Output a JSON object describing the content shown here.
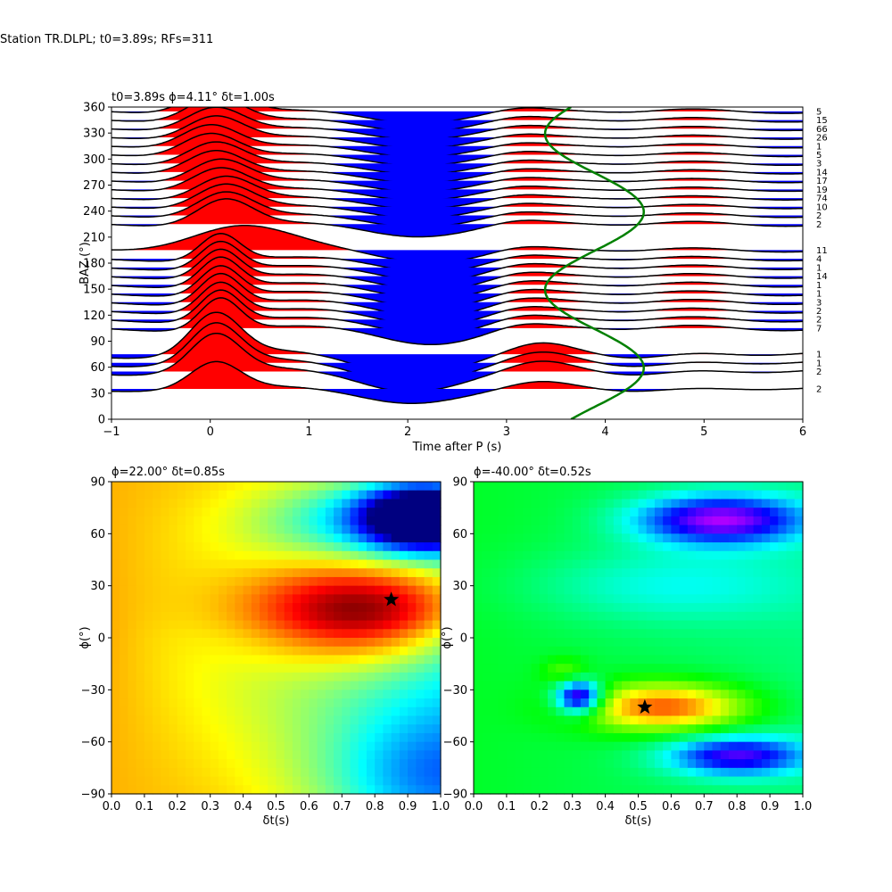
{
  "figure": {
    "suptitle": "Station TR.DLPL; t0=3.89s; RFs=311"
  },
  "chart_data": [
    {
      "type": "line",
      "subtype": "receiver-function wiggle traces sorted by back-azimuth",
      "title": "t0=3.89s ϕ=4.11° δt=1.00s",
      "xlabel": "Time after P (s)",
      "ylabel": "BAZ (°)",
      "xlim": [
        -1,
        6
      ],
      "ylim": [
        0,
        360
      ],
      "xticks": [
        -1,
        0,
        1,
        2,
        3,
        4,
        5,
        6
      ],
      "yticks": [
        0,
        30,
        60,
        90,
        120,
        150,
        180,
        210,
        240,
        270,
        300,
        330,
        360
      ],
      "fill_colors": {
        "positive": "#ff0000",
        "negative": "#0000ff"
      },
      "trace_color": "#000000",
      "curve_color": "#008000",
      "traces": [
        {
          "baz": 35,
          "count": "2",
          "amp": 30,
          "p": [
            0.05,
            0.25,
            0.0,
            0.1
          ]
        },
        {
          "baz": 55,
          "count": "2",
          "amp": 42,
          "p": [
            0.05,
            0.25,
            0.0,
            0.1
          ]
        },
        {
          "baz": 65,
          "count": "1",
          "amp": 44,
          "p": [
            0.05,
            0.25,
            0.0,
            0.1
          ]
        },
        {
          "baz": 75,
          "count": "1",
          "amp": 46,
          "p": [
            0.05,
            0.25,
            0.0,
            0.1
          ]
        },
        {
          "baz": 105,
          "count": "7",
          "amp": 36,
          "p": [
            0.1,
            0.2,
            0.8,
            -0.8
          ]
        },
        {
          "baz": 115,
          "count": "2",
          "amp": 35,
          "p": [
            0.1,
            0.2,
            0.8,
            -0.8
          ]
        },
        {
          "baz": 125,
          "count": "2",
          "amp": 34,
          "p": [
            0.1,
            0.2,
            0.8,
            -0.8
          ]
        },
        {
          "baz": 135,
          "count": "3",
          "amp": 34,
          "p": [
            0.1,
            0.2,
            0.8,
            -0.8
          ]
        },
        {
          "baz": 145,
          "count": "1",
          "amp": 33,
          "p": [
            0.1,
            0.2,
            0.8,
            -0.8
          ]
        },
        {
          "baz": 155,
          "count": "1",
          "amp": 33,
          "p": [
            0.1,
            0.2,
            0.8,
            -0.8
          ]
        },
        {
          "baz": 165,
          "count": "14",
          "amp": 32,
          "p": [
            0.1,
            0.2,
            0.8,
            -0.8
          ]
        },
        {
          "baz": 175,
          "count": "1",
          "amp": 31,
          "p": [
            0.1,
            0.2,
            0.8,
            -0.8
          ]
        },
        {
          "baz": 185,
          "count": "4",
          "amp": 30,
          "p": [
            0.1,
            0.2,
            0.8,
            -0.8
          ]
        },
        {
          "baz": 195,
          "count": "11",
          "amp": 28,
          "p": [
            0.3,
            0.5,
            0.8,
            -0.8
          ]
        },
        {
          "baz": 225,
          "count": "2",
          "amp": 30,
          "p": [
            0.15,
            0.28,
            0.0,
            -0.9
          ]
        },
        {
          "baz": 235,
          "count": "2",
          "amp": 28,
          "p": [
            0.15,
            0.28,
            0.0,
            -0.9
          ]
        },
        {
          "baz": 245,
          "count": "10",
          "amp": 27,
          "p": [
            0.15,
            0.28,
            0.0,
            -0.9
          ]
        },
        {
          "baz": 255,
          "count": "74",
          "amp": 26,
          "p": [
            0.15,
            0.28,
            0.0,
            -0.9
          ]
        },
        {
          "baz": 265,
          "count": "19",
          "amp": 26,
          "p": [
            0.1,
            0.28,
            0.0,
            -0.9
          ]
        },
        {
          "baz": 275,
          "count": "17",
          "amp": 26,
          "p": [
            0.1,
            0.28,
            0.0,
            -0.9
          ]
        },
        {
          "baz": 285,
          "count": "14",
          "amp": 26,
          "p": [
            0.05,
            0.28,
            0.0,
            -0.9
          ]
        },
        {
          "baz": 295,
          "count": "3",
          "amp": 26,
          "p": [
            0.05,
            0.28,
            0.0,
            -0.9
          ]
        },
        {
          "baz": 305,
          "count": "5",
          "amp": 26,
          "p": [
            0.0,
            0.28,
            0.0,
            -0.9
          ]
        },
        {
          "baz": 315,
          "count": "1",
          "amp": 26,
          "p": [
            0.0,
            0.28,
            0.0,
            -0.9
          ]
        },
        {
          "baz": 325,
          "count": "26",
          "amp": 26,
          "p": [
            0.05,
            0.28,
            0.0,
            -0.9
          ]
        },
        {
          "baz": 335,
          "count": "66",
          "amp": 26,
          "p": [
            0.05,
            0.28,
            0.0,
            -0.9
          ]
        },
        {
          "baz": 345,
          "count": "15",
          "amp": 28,
          "p": [
            0.05,
            0.28,
            0.0,
            -0.9
          ]
        },
        {
          "baz": 355,
          "count": "5",
          "amp": 28,
          "p": [
            0.05,
            0.28,
            0.0,
            -0.9
          ]
        }
      ],
      "curve": {
        "name": "",
        "center": 3.89,
        "amplitude": 0.5,
        "baz_period": 180,
        "baz_phase": 4.11
      }
    },
    {
      "type": "heatmap",
      "title": "ϕ=22.00° δt=0.85s",
      "xlabel": "δt(s)",
      "ylabel": "ϕ(°)",
      "xlim": [
        0.0,
        1.0
      ],
      "ylim": [
        -90,
        90
      ],
      "xticks": [
        0.0,
        0.1,
        0.2,
        0.3,
        0.4,
        0.5,
        0.6,
        0.7,
        0.8,
        0.9,
        1.0
      ],
      "yticks": [
        -90,
        -60,
        -30,
        0,
        30,
        60,
        90
      ],
      "colormap": "jet",
      "best": {
        "dt": 0.85,
        "phi": 22.0
      },
      "bumps": [
        {
          "dt": 0.78,
          "phi": 15,
          "sx": 0.25,
          "sy": 20,
          "a": 0.55
        },
        {
          "dt": 0.95,
          "phi": 70,
          "sx": 0.12,
          "sy": 12,
          "a": -0.75
        },
        {
          "dt": 0.85,
          "phi": 68,
          "sx": 0.25,
          "sy": 16,
          "a": -0.3
        },
        {
          "dt": 1.0,
          "phi": -85,
          "sx": 0.25,
          "sy": 30,
          "a": -0.35
        }
      ],
      "base": 0.7,
      "slope": -0.4
    },
    {
      "type": "heatmap",
      "title": "ϕ=-40.00° δt=0.52s",
      "xlabel": "δt(s)",
      "ylabel": "ϕ(°)",
      "xlim": [
        0.0,
        1.0
      ],
      "ylim": [
        -90,
        90
      ],
      "xticks": [
        0.0,
        0.1,
        0.2,
        0.3,
        0.4,
        0.5,
        0.6,
        0.7,
        0.8,
        0.9,
        1.0
      ],
      "yticks": [
        -90,
        -60,
        -30,
        0,
        30,
        60,
        90
      ],
      "colormap": "hsv",
      "best": {
        "dt": 0.52,
        "phi": -40.0
      },
      "bumps": [
        {
          "dt": 0.58,
          "phi": -40,
          "sx": 0.18,
          "sy": 10,
          "a": -0.33
        },
        {
          "dt": 0.32,
          "phi": -34,
          "sx": 0.05,
          "sy": 7,
          "a": 0.42
        },
        {
          "dt": 0.75,
          "phi": 68,
          "sx": 0.18,
          "sy": 10,
          "a": 0.38
        },
        {
          "dt": 0.8,
          "phi": -68,
          "sx": 0.15,
          "sy": 8,
          "a": 0.32
        },
        {
          "dt": 0.6,
          "phi": 30,
          "sx": 0.3,
          "sy": 15,
          "a": 0.1
        },
        {
          "dt": 0.28,
          "phi": -20,
          "sx": 0.05,
          "sy": 6,
          "a": -0.1
        }
      ],
      "base": 0.36,
      "slope": 0.05
    }
  ]
}
